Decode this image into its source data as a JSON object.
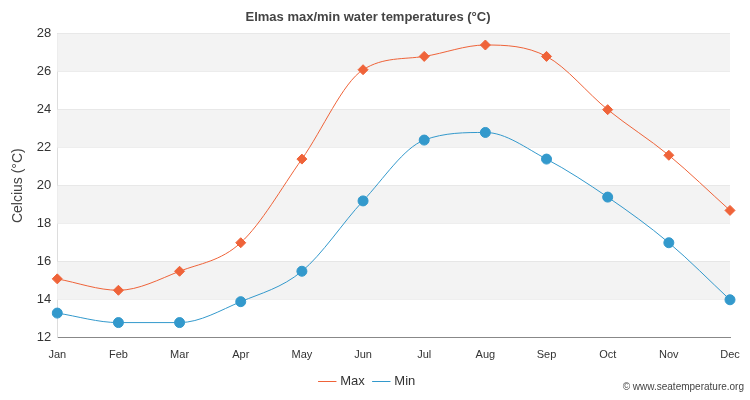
{
  "chart_data": {
    "type": "line",
    "title": "Elmas max/min water temperatures (°C)",
    "y_label": "Celcius (°C)",
    "categories": [
      "Jan",
      "Feb",
      "Mar",
      "Apr",
      "May",
      "Jun",
      "Jul",
      "Aug",
      "Sep",
      "Oct",
      "Nov",
      "Dec"
    ],
    "series": [
      {
        "name": "Max",
        "color": "#ef6339",
        "marker": "diamond",
        "values": [
          15.1,
          14.5,
          15.5,
          17.0,
          21.4,
          26.1,
          26.8,
          27.4,
          26.8,
          24.0,
          21.6,
          18.7
        ]
      },
      {
        "name": "Min",
        "color": "#3399cc",
        "marker": "circle",
        "values": [
          13.3,
          12.8,
          12.8,
          13.9,
          15.5,
          19.2,
          22.4,
          22.8,
          21.4,
          19.4,
          17.0,
          14.0
        ]
      }
    ],
    "ylim": [
      12,
      28
    ],
    "yticks": [
      12,
      14,
      16,
      18,
      20,
      22,
      24,
      26,
      28
    ],
    "grid": true,
    "legend": "bottom",
    "annotations": [
      "© www.seatemperature.org"
    ]
  }
}
